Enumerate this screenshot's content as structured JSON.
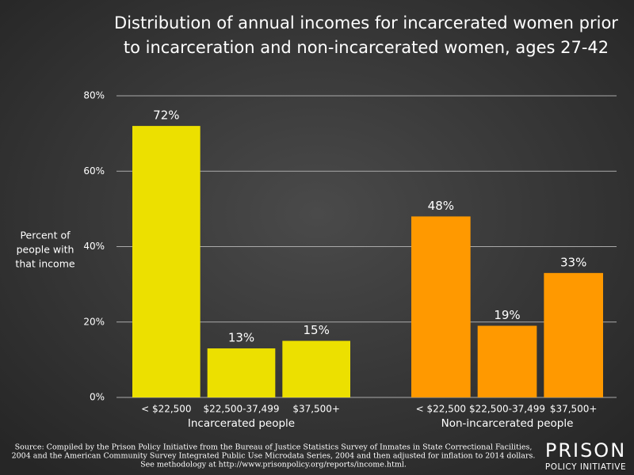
{
  "chart_data": {
    "type": "grouped_bar",
    "title": [
      "Distribution of annual incomes for incarcerated women prior",
      "to incarceration and non-incarcerated women, ages 27-42"
    ],
    "y_label": [
      "Percent of",
      "people with",
      "that income"
    ],
    "ylim": [
      0,
      80
    ],
    "yticks": [
      {
        "value": 0,
        "label": "0%"
      },
      {
        "value": 20,
        "label": "20%"
      },
      {
        "value": 40,
        "label": "40%"
      },
      {
        "value": 60,
        "label": "60%"
      },
      {
        "value": 80,
        "label": "80%"
      }
    ],
    "grid": true,
    "groups": [
      {
        "name": "Incarcerated people",
        "color": "#ece000",
        "categories": [
          "< $22,500",
          "$22,500-37,499",
          "$37,500+"
        ],
        "values": [
          72,
          13,
          15
        ],
        "value_labels": [
          "72%",
          "13%",
          "15%"
        ]
      },
      {
        "name": "Non-incarcerated people",
        "color": "#ff9900",
        "categories": [
          "< $22,500",
          "$22,500-37,499",
          "$37,500+"
        ],
        "values": [
          48,
          19,
          33
        ],
        "value_labels": [
          "48%",
          "19%",
          "33%"
        ]
      }
    ],
    "source": [
      "Source: Compiled by the Prison Policy Initiative from the Bureau of Justice Statistics Survey of Inmates in State Correctional Facilities,",
      "2004 and the American Community Survey Integrated Public Use Microdata Series, 2004 and then adjusted for inflation to 2014 dollars.",
      "See methodology at http://www.prisonpolicy.org/reports/income.html."
    ],
    "logo": [
      "PRISON",
      "POLICY INITIATIVE"
    ]
  }
}
